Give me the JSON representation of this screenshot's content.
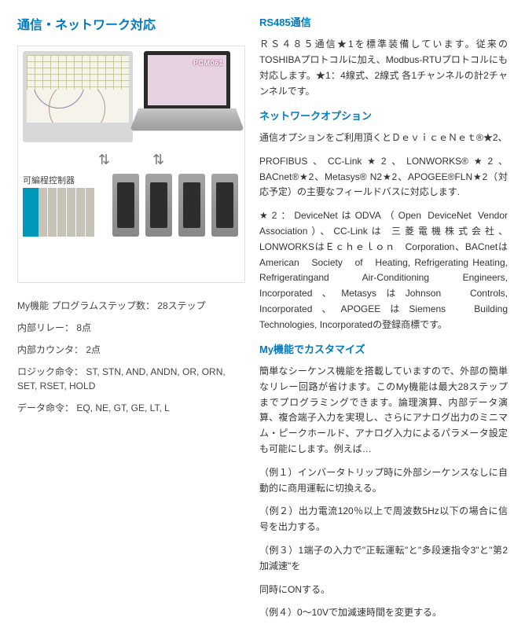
{
  "left": {
    "title": "通信・ネットワーク対応",
    "fig": {
      "laptop_text": "PCM061",
      "plc_label": "可編程控制器"
    },
    "specs": [
      "My機能 プログラムステップ数： 28ステップ",
      "内部リレー： 8点",
      "内部カウンタ： 2点",
      "ロジック命令： ST, STN, AND, ANDN, OR, ORN, SET, RSET, HOLD",
      "データ命令： EQ, NE, GT, GE, LT, L"
    ]
  },
  "right": {
    "sections": [
      {
        "h": "RS485通信"
      },
      {
        "p": "ＲＳ４８５通信★1を標準装備しています。従来のTOSHIBAプロトコルに加え、Modbus-RTUプロトコルにも対応します。★1：4線式、2線式 各1チャンネルの計2チャンネルです。"
      },
      {
        "h": "ネットワークオプション"
      },
      {
        "p": "通信オプションをご利用頂くとＤｅｖｉｃｅＮｅｔ®★2、"
      },
      {
        "p": "PROFIBUS、CC-Link★2、LONWORKS®★2、BACnet®★2、Metasys® N2★2、APOGEE®FLN★2（対応予定）の主要なフィールドバスに対応します."
      },
      {
        "p": "★2：DeviceNetはODVA（Open DeviceNet Vendor Association）、CC-Linkは 三菱電機株式会社、LONWORKSはＥｃｈｅｌｏｎ　Corporation、BACnetはAmerican　Society　of　Heating, Refrigerating Heating, Refrigeratingand Air-Conditioning Engineers,　Incorporated、MetasysはJohnson　Controls, Incorporated、APOGEEはSiemens　Building　Technologies, Incorporatedの登録商標です。"
      },
      {
        "h": "My機能でカスタマイズ"
      },
      {
        "p": "簡単なシーケンス機能を搭載していますので、外部の簡単なリレー回路が省けます。このMy機能は最大28ステップまでプログラミングできます。論理演算、内部データ演算、複合端子入力を実現し、さらにアナログ出力のミニマム・ピークホールド、アナログ入力によるパラメータ設定も可能にします。例えば…"
      },
      {
        "p": "（例１）インバータトリップ時に外部シーケンスなしに自動的に商用運転に切換える。"
      },
      {
        "p": "（例２）出力電流120％以上で周波数5Hz以下の場合に信号を出力する。"
      },
      {
        "p": "（例３）1端子の入力で\"正転運転\"と\"多段速指令3\"と\"第2加減速\"を"
      },
      {
        "p": "同時にONする。"
      },
      {
        "p": "（例４）0～10Vで加減速時間を変更する。"
      }
    ]
  }
}
